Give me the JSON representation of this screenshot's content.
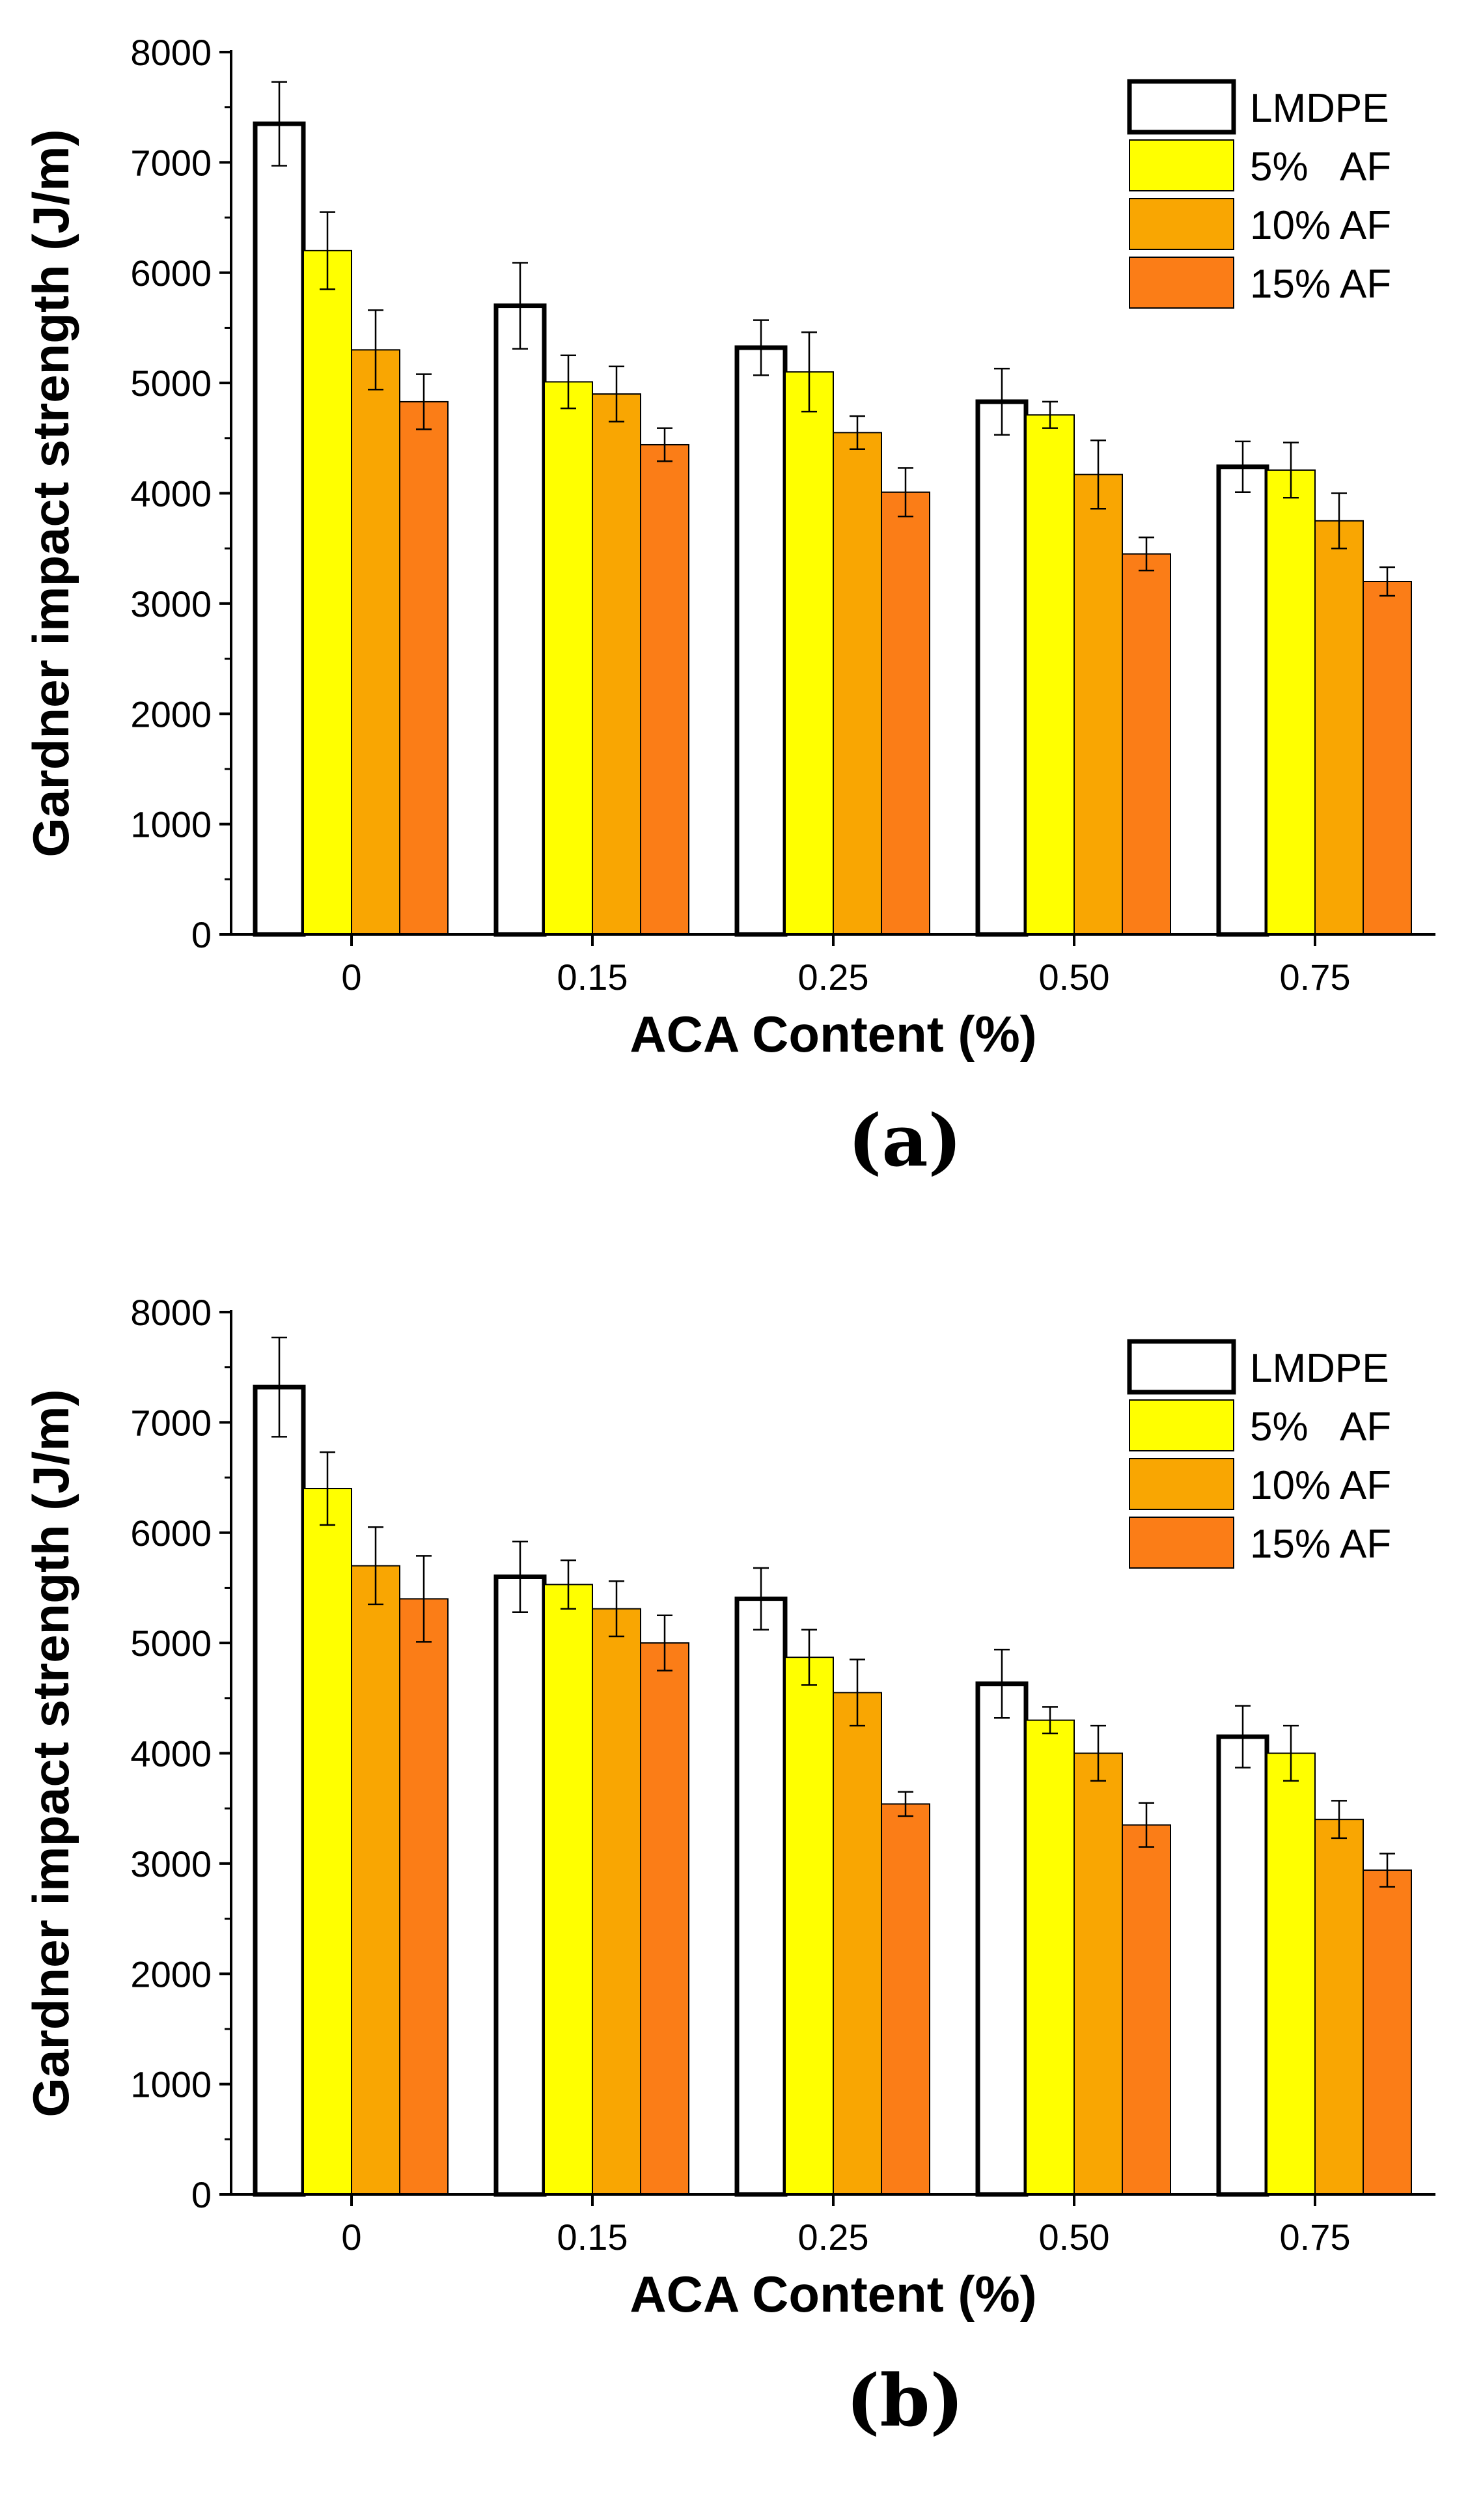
{
  "chart_data": [
    {
      "type": "bar",
      "panel_label": "(a)",
      "categories": [
        "0",
        "0.15",
        "0.25",
        "0.50",
        "0.75"
      ],
      "xlabel": "ACA Content (%)",
      "ylabel": "Gardner impact strength (J/m)",
      "ylim": [
        0,
        8000
      ],
      "yticks": [
        0,
        1000,
        2000,
        3000,
        4000,
        5000,
        6000,
        7000,
        8000
      ],
      "grid": false,
      "legend_position": "top-right",
      "series": [
        {
          "name": "LMDPE",
          "color": "#ffffff",
          "values": [
            7350,
            5700,
            5320,
            4830,
            4240
          ],
          "errors": [
            380,
            390,
            250,
            300,
            230
          ]
        },
        {
          "name": "5%   AF",
          "color": "#ffff00",
          "values": [
            6200,
            5010,
            5100,
            4710,
            4210
          ],
          "errors": [
            350,
            240,
            360,
            120,
            250
          ]
        },
        {
          "name": "10% AF",
          "color": "#f9a602",
          "values": [
            5300,
            4900,
            4550,
            4170,
            3750
          ],
          "errors": [
            360,
            250,
            150,
            310,
            250
          ]
        },
        {
          "name": "15% AF",
          "color": "#fb7d17",
          "values": [
            4830,
            4440,
            4010,
            3450,
            3200
          ],
          "errors": [
            250,
            150,
            220,
            150,
            130
          ]
        }
      ]
    },
    {
      "type": "bar",
      "panel_label": "(b)",
      "categories": [
        "0",
        "0.15",
        "0.25",
        "0.50",
        "0.75"
      ],
      "xlabel": "ACA Content (%)",
      "ylabel": "Gardner impact strength (J/m)",
      "ylim": [
        0,
        8000
      ],
      "yticks": [
        0,
        1000,
        2000,
        3000,
        4000,
        5000,
        6000,
        7000,
        8000
      ],
      "grid": false,
      "legend_position": "top-right",
      "series": [
        {
          "name": "LMDPE",
          "color": "#ffffff",
          "values": [
            7320,
            5600,
            5400,
            4630,
            4150
          ],
          "errors": [
            450,
            320,
            280,
            310,
            280
          ]
        },
        {
          "name": "5%   AF",
          "color": "#ffff00",
          "values": [
            6400,
            5530,
            4870,
            4300,
            4000
          ],
          "errors": [
            330,
            220,
            250,
            120,
            250
          ]
        },
        {
          "name": "10% AF",
          "color": "#f9a602",
          "values": [
            5700,
            5310,
            4550,
            4000,
            3400
          ],
          "errors": [
            350,
            250,
            300,
            250,
            170
          ]
        },
        {
          "name": "15% AF",
          "color": "#fb7d17",
          "values": [
            5400,
            5000,
            3540,
            3350,
            2940
          ],
          "errors": [
            390,
            250,
            110,
            200,
            150
          ]
        }
      ]
    }
  ]
}
